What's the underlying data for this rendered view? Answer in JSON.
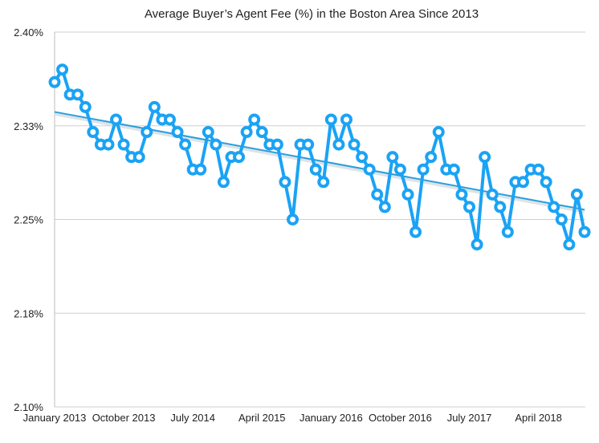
{
  "chart_data": {
    "type": "line",
    "title": "Average Buyer’s Agent Fee (%) in the Boston Area Since 2013",
    "xlabel": "",
    "ylabel": "",
    "ylim": [
      2.1,
      2.4
    ],
    "y_ticks": [
      2.1,
      2.175,
      2.25,
      2.325,
      2.4
    ],
    "y_tick_labels": [
      "2.10%",
      "2.18%",
      "2.25%",
      "2.33%",
      "2.40%"
    ],
    "x_tick_labels": [
      {
        "label": "January 2013",
        "index": 0
      },
      {
        "label": "October 2013",
        "index": 9
      },
      {
        "label": "July 2014",
        "index": 18
      },
      {
        "label": "April 2015",
        "index": 27
      },
      {
        "label": "January 2016",
        "index": 36
      },
      {
        "label": "October 2016",
        "index": 45
      },
      {
        "label": "July 2017",
        "index": 54
      },
      {
        "label": "April 2018",
        "index": 63
      }
    ],
    "grid": true,
    "trendline": true,
    "series": [
      {
        "values": [
          2.36,
          2.37,
          2.35,
          2.35,
          2.34,
          2.32,
          2.31,
          2.31,
          2.33,
          2.31,
          2.3,
          2.3,
          2.32,
          2.34,
          2.33,
          2.33,
          2.32,
          2.31,
          2.29,
          2.29,
          2.32,
          2.31,
          2.28,
          2.3,
          2.3,
          2.32,
          2.33,
          2.32,
          2.31,
          2.31,
          2.28,
          2.25,
          2.31,
          2.31,
          2.29,
          2.28,
          2.33,
          2.31,
          2.33,
          2.31,
          2.3,
          2.29,
          2.27,
          2.26,
          2.3,
          2.29,
          2.27,
          2.24,
          2.29,
          2.3,
          2.32,
          2.29,
          2.29,
          2.27,
          2.26,
          2.23,
          2.3,
          2.27,
          2.26,
          2.24,
          2.28,
          2.28,
          2.29,
          2.29,
          2.28,
          2.26,
          2.25,
          2.23,
          2.27,
          2.24
        ]
      }
    ]
  }
}
